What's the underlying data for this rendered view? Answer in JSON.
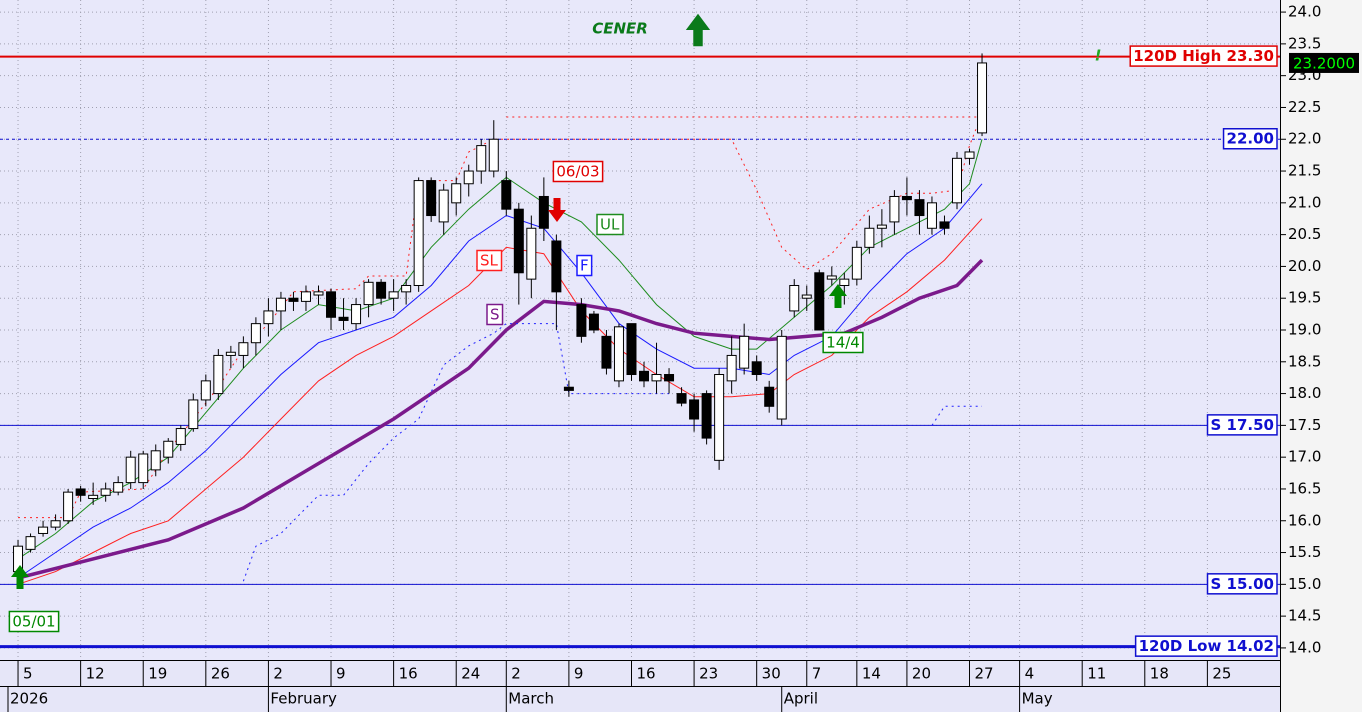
{
  "chart_data": {
    "type": "candlestick",
    "xlim": [
      -1.44,
      100.8
    ],
    "ylim": [
      13.81,
      24.19
    ],
    "grid": true,
    "x": [
      0,
      1,
      2,
      3,
      4,
      5,
      6,
      7,
      8,
      9,
      10,
      11,
      12,
      13,
      14,
      15,
      16,
      17,
      18,
      19,
      20,
      21,
      22,
      23,
      24,
      25,
      26,
      27,
      28,
      29,
      30,
      31,
      32,
      33,
      34,
      35,
      36,
      37,
      38,
      39,
      40,
      41,
      42,
      43,
      44,
      45,
      46,
      47,
      48,
      49,
      50,
      51,
      52,
      53,
      54,
      55,
      56,
      57,
      58,
      59,
      60,
      61,
      62,
      63,
      64,
      65,
      66,
      67,
      68,
      69,
      70,
      71,
      72,
      73,
      74,
      75,
      76,
      77
    ],
    "open": [
      15.2,
      15.55,
      15.8,
      15.9,
      16.0,
      16.5,
      16.35,
      16.4,
      16.45,
      16.6,
      16.6,
      16.8,
      17.0,
      17.2,
      17.45,
      17.9,
      18.0,
      18.6,
      18.6,
      18.8,
      19.1,
      19.3,
      19.5,
      19.45,
      19.55,
      19.6,
      19.2,
      19.1,
      19.4,
      19.75,
      19.5,
      19.6,
      19.7,
      21.35,
      20.7,
      21.0,
      21.3,
      21.5,
      21.5,
      21.35,
      20.9,
      19.8,
      21.1,
      20.4,
      18.1,
      19.4,
      19.25,
      18.9,
      18.2,
      19.1,
      18.35,
      18.2,
      18.3,
      18.0,
      17.9,
      18.0,
      16.95,
      18.2,
      18.4,
      18.5,
      18.1,
      17.6,
      19.3,
      19.5,
      19.9,
      19.8,
      19.7,
      19.8,
      20.3,
      20.6,
      20.7,
      21.1,
      21.05,
      20.6,
      20.7,
      21.0,
      21.7,
      22.1
    ],
    "high": [
      15.7,
      15.8,
      16.0,
      16.1,
      16.5,
      16.55,
      16.6,
      16.6,
      16.7,
      17.1,
      17.1,
      17.2,
      17.3,
      17.5,
      18.0,
      18.3,
      18.7,
      18.75,
      18.9,
      19.2,
      19.5,
      19.6,
      19.6,
      19.7,
      19.7,
      19.65,
      19.5,
      19.5,
      19.8,
      19.8,
      19.8,
      19.8,
      21.4,
      21.4,
      21.3,
      21.4,
      21.6,
      22.0,
      22.3,
      21.5,
      21.0,
      20.8,
      21.4,
      20.5,
      18.2,
      19.5,
      19.3,
      19.0,
      19.1,
      19.1,
      18.5,
      18.8,
      18.4,
      18.1,
      18.0,
      18.05,
      18.4,
      18.9,
      19.1,
      18.6,
      18.2,
      19.0,
      19.8,
      19.7,
      19.95,
      20.0,
      19.9,
      20.4,
      20.8,
      20.9,
      21.2,
      21.4,
      21.2,
      21.1,
      20.8,
      21.8,
      21.85,
      23.35
    ],
    "low": [
      15.1,
      15.5,
      15.75,
      15.85,
      15.95,
      16.3,
      16.25,
      16.3,
      16.4,
      16.5,
      16.5,
      16.7,
      16.9,
      17.1,
      17.4,
      17.8,
      17.9,
      18.4,
      18.4,
      18.6,
      18.9,
      19.0,
      19.3,
      19.3,
      19.4,
      19.0,
      19.0,
      19.0,
      19.2,
      19.4,
      19.3,
      19.4,
      19.6,
      20.7,
      20.5,
      20.8,
      21.1,
      21.3,
      21.4,
      20.8,
      19.4,
      19.5,
      20.4,
      19.0,
      17.95,
      18.8,
      18.95,
      18.3,
      18.1,
      18.2,
      18.1,
      18.0,
      18.0,
      17.8,
      17.4,
      17.2,
      16.8,
      18.0,
      18.3,
      18.2,
      17.7,
      17.5,
      19.2,
      19.3,
      19.0,
      19.7,
      19.4,
      19.7,
      20.2,
      20.3,
      20.5,
      20.8,
      20.5,
      20.5,
      20.5,
      20.9,
      21.6,
      22.05
    ],
    "close": [
      15.6,
      15.75,
      15.9,
      16.0,
      16.45,
      16.4,
      16.4,
      16.5,
      16.6,
      17.0,
      17.05,
      17.1,
      17.25,
      17.45,
      17.9,
      18.2,
      18.6,
      18.65,
      18.8,
      19.1,
      19.3,
      19.5,
      19.45,
      19.6,
      19.6,
      19.2,
      19.15,
      19.4,
      19.75,
      19.5,
      19.6,
      19.7,
      21.35,
      20.8,
      21.2,
      21.3,
      21.5,
      21.9,
      22.0,
      20.9,
      19.9,
      20.6,
      20.6,
      19.6,
      18.05,
      18.9,
      19.0,
      18.4,
      19.05,
      18.3,
      18.2,
      18.3,
      18.2,
      17.85,
      17.6,
      17.3,
      18.3,
      18.6,
      18.9,
      18.3,
      17.8,
      18.9,
      19.7,
      19.55,
      19.0,
      19.85,
      19.8,
      20.3,
      20.6,
      20.65,
      21.1,
      21.05,
      20.8,
      21.0,
      20.6,
      21.7,
      21.8,
      23.2
    ],
    "up_color": "#ffffff",
    "down_color": "#000000",
    "series": [
      {
        "name": "UL",
        "color": "#1e8c1e",
        "width": 1,
        "dashed": false,
        "x": [
          0,
          3,
          6,
          9,
          12,
          15,
          18,
          21,
          24,
          27,
          30,
          33,
          36,
          39,
          42,
          45,
          48,
          51,
          54,
          57,
          59,
          62,
          65,
          68,
          71,
          74,
          76,
          77
        ],
        "values": [
          15.4,
          15.8,
          16.3,
          16.6,
          17.0,
          17.7,
          18.4,
          19.0,
          19.4,
          19.3,
          19.5,
          20.3,
          20.9,
          21.4,
          21.0,
          20.7,
          20.1,
          19.4,
          18.9,
          18.7,
          18.7,
          19.2,
          19.7,
          20.3,
          20.6,
          20.9,
          21.3,
          22.0
        ]
      },
      {
        "name": "F",
        "color": "#1a1aff",
        "width": 1,
        "dashed": false,
        "x": [
          0,
          3,
          6,
          9,
          12,
          15,
          18,
          21,
          24,
          27,
          30,
          33,
          36,
          39,
          42,
          45,
          48,
          51,
          54,
          57,
          60,
          62,
          65,
          68,
          71,
          74,
          77
        ],
        "values": [
          15.1,
          15.5,
          15.9,
          16.2,
          16.6,
          17.1,
          17.7,
          18.3,
          18.8,
          19.0,
          19.2,
          19.7,
          20.4,
          20.8,
          20.6,
          19.9,
          19.1,
          18.7,
          18.4,
          18.4,
          18.3,
          18.6,
          18.9,
          19.6,
          20.2,
          20.6,
          21.3
        ]
      },
      {
        "name": "SL",
        "color": "#ff2020",
        "width": 1,
        "dashed": false,
        "x": [
          0,
          3,
          6,
          9,
          12,
          15,
          18,
          21,
          24,
          27,
          30,
          33,
          36,
          39,
          42,
          45,
          48,
          51,
          54,
          57,
          60,
          62,
          65,
          68,
          71,
          74,
          77
        ],
        "values": [
          15.0,
          15.2,
          15.5,
          15.8,
          16.0,
          16.5,
          17.0,
          17.6,
          18.2,
          18.6,
          18.9,
          19.3,
          19.7,
          20.3,
          20.2,
          19.3,
          18.7,
          18.3,
          17.95,
          17.95,
          18.0,
          18.3,
          18.6,
          19.2,
          19.6,
          20.1,
          20.75
        ]
      },
      {
        "name": "S",
        "color": "#7b1a8b",
        "width": 3.5,
        "dashed": false,
        "x": [
          0,
          6,
          12,
          18,
          24,
          30,
          36,
          39,
          42,
          45,
          48,
          51,
          54,
          57,
          60,
          63,
          66,
          69,
          72,
          75,
          77
        ],
        "values": [
          15.1,
          15.4,
          15.7,
          16.2,
          16.9,
          17.6,
          18.4,
          19.0,
          19.45,
          19.4,
          19.3,
          19.1,
          18.95,
          18.9,
          18.85,
          18.9,
          18.95,
          19.2,
          19.5,
          19.7,
          20.1
        ]
      },
      {
        "color": "#ff2020",
        "width": 1,
        "dashed": true,
        "x": [
          0,
          4,
          5,
          10,
          12,
          14,
          16,
          18,
          20,
          22,
          27,
          28,
          31,
          32,
          35,
          36,
          37,
          38,
          57,
          59,
          61,
          63,
          65,
          68,
          71,
          73,
          75,
          76,
          77
        ],
        "values": [
          16.05,
          16.05,
          16.45,
          16.5,
          17.1,
          17.6,
          18.1,
          18.7,
          19.1,
          19.6,
          19.65,
          19.85,
          19.85,
          21.35,
          21.35,
          21.8,
          21.9,
          22.0,
          22.0,
          21.2,
          20.3,
          19.95,
          20.2,
          20.9,
          21.15,
          21.15,
          21.2,
          21.9,
          22.4
        ]
      },
      {
        "color": "#ff2020",
        "width": 1,
        "dashed": true,
        "x": [
          39,
          77
        ],
        "values": [
          22.35,
          22.35
        ]
      },
      {
        "color": "#2020ff",
        "width": 1,
        "dashed": true,
        "x": [
          18,
          19,
          21,
          24,
          26,
          28,
          30,
          32,
          34,
          36,
          38,
          39,
          43,
          44,
          52,
          60,
          73,
          74,
          77
        ],
        "values": [
          15.05,
          15.6,
          15.8,
          16.4,
          16.4,
          16.9,
          17.3,
          17.6,
          18.45,
          18.75,
          18.95,
          19.1,
          19.1,
          18.0,
          18.0,
          null,
          17.5,
          17.8,
          17.8
        ]
      }
    ],
    "levels": [
      {
        "value": 23.3,
        "label": "120D High 23.30",
        "color": "#e00000",
        "width": 2,
        "dashed": false
      },
      {
        "value": 22,
        "label": "22.00",
        "color": "#1010d0",
        "width": 1,
        "dashed": true
      },
      {
        "value": 17.5,
        "label": "S 17.50",
        "color": "#1010d0",
        "width": 1,
        "dashed": false
      },
      {
        "value": 15,
        "label": "S 15.00",
        "color": "#1010d0",
        "width": 1,
        "dashed": false
      },
      {
        "value": 14.02,
        "label": "120D Low 14.02",
        "color": "#1010d0",
        "width": 3,
        "dashed": false
      }
    ],
    "last_price": {
      "value": 23.2,
      "label": "23.2000"
    },
    "annotations": [
      {
        "text": "CENER",
        "color": "#0a7a1a"
      },
      {
        "text": "06/03",
        "color": "#e00000"
      },
      {
        "text": "14/4",
        "color": "#008800"
      },
      {
        "text": "05/01",
        "color": "#008800"
      },
      {
        "text": "!",
        "color": "#22aa22"
      }
    ],
    "yticks": [
      {
        "value": 14,
        "label": "14.0"
      },
      {
        "value": 14.5,
        "label": "14.5"
      },
      {
        "value": 15,
        "label": "15.0"
      },
      {
        "value": 15.5,
        "label": "15.5"
      },
      {
        "value": 16,
        "label": "16.0"
      },
      {
        "value": 16.5,
        "label": "16.5"
      },
      {
        "value": 17,
        "label": "17.0"
      },
      {
        "value": 17.5,
        "label": "17.5"
      },
      {
        "value": 18,
        "label": "18.0"
      },
      {
        "value": 18.5,
        "label": "18.5"
      },
      {
        "value": 19,
        "label": "19.0"
      },
      {
        "value": 19.5,
        "label": "19.5"
      },
      {
        "value": 20,
        "label": "20.0"
      },
      {
        "value": 20.5,
        "label": "20.5"
      },
      {
        "value": 21,
        "label": "21.0"
      },
      {
        "value": 21.5,
        "label": "21.5"
      },
      {
        "value": 22,
        "label": "22.0"
      },
      {
        "value": 22.5,
        "label": "22.5"
      },
      {
        "value": 23,
        "label": "23.0"
      },
      {
        "value": 23.5,
        "label": "23.5"
      },
      {
        "value": 24,
        "label": "24.0"
      }
    ],
    "xticks": [
      {
        "value": 0,
        "label": "5"
      },
      {
        "value": 5,
        "label": "12"
      },
      {
        "value": 10,
        "label": "19"
      },
      {
        "value": 15,
        "label": "26"
      },
      {
        "value": 20,
        "label": "2"
      },
      {
        "value": 25,
        "label": "9"
      },
      {
        "value": 30,
        "label": "16"
      },
      {
        "value": 35,
        "label": "24"
      },
      {
        "value": 39,
        "label": "2"
      },
      {
        "value": 44,
        "label": "9"
      },
      {
        "value": 49,
        "label": "16"
      },
      {
        "value": 54,
        "label": "23"
      },
      {
        "value": 59,
        "label": "30"
      },
      {
        "value": 63,
        "label": "7"
      },
      {
        "value": 67,
        "label": "14"
      },
      {
        "value": 71,
        "label": "20"
      },
      {
        "value": 76,
        "label": "27"
      },
      {
        "value": 80,
        "label": "4"
      },
      {
        "value": 85,
        "label": "11"
      },
      {
        "value": 90,
        "label": "18"
      },
      {
        "value": 95,
        "label": "25"
      }
    ],
    "month_ticks": [
      {
        "value": -0.8,
        "label": "2026"
      },
      {
        "value": 20,
        "label": "February"
      },
      {
        "value": 39,
        "label": "March"
      },
      {
        "value": 61,
        "label": "April"
      },
      {
        "value": 80,
        "label": "May"
      }
    ]
  }
}
